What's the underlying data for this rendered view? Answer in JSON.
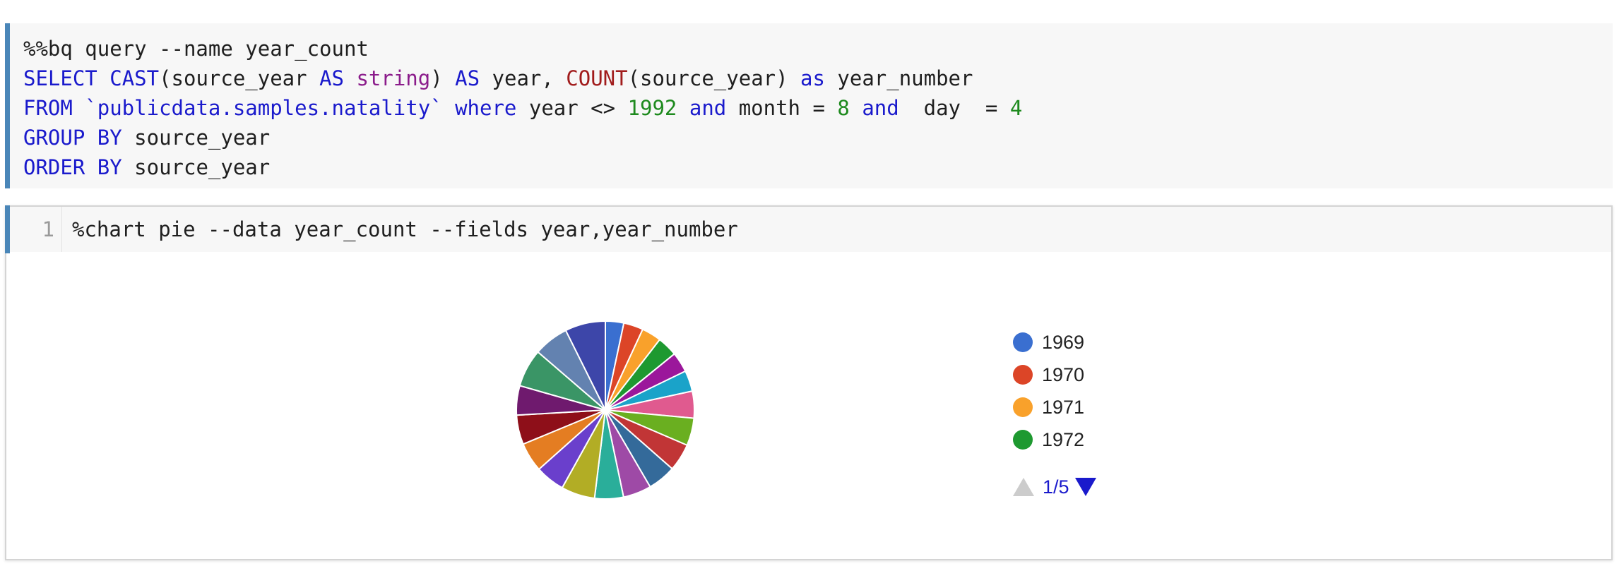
{
  "query_cell": {
    "lines": [
      [
        {
          "t": "%%bq query --name year_count",
          "c": ""
        }
      ],
      [
        {
          "t": "SELECT",
          "c": "kw"
        },
        {
          "t": " ",
          "c": ""
        },
        {
          "t": "CAST",
          "c": "kw"
        },
        {
          "t": "(source_year ",
          "c": ""
        },
        {
          "t": "AS",
          "c": "kw"
        },
        {
          "t": " ",
          "c": ""
        },
        {
          "t": "string",
          "c": "ty"
        },
        {
          "t": ") ",
          "c": ""
        },
        {
          "t": "AS",
          "c": "kw"
        },
        {
          "t": " year, ",
          "c": ""
        },
        {
          "t": "COUNT",
          "c": "fn"
        },
        {
          "t": "(source_year) ",
          "c": ""
        },
        {
          "t": "as",
          "c": "kw"
        },
        {
          "t": " year_number",
          "c": ""
        }
      ],
      [
        {
          "t": "FROM",
          "c": "kw"
        },
        {
          "t": " `publicdata.samples.natality` ",
          "c": "kw"
        },
        {
          "t": "where",
          "c": "kw"
        },
        {
          "t": " year <> ",
          "c": ""
        },
        {
          "t": "1992",
          "c": "nm"
        },
        {
          "t": " ",
          "c": ""
        },
        {
          "t": "and",
          "c": "kw"
        },
        {
          "t": " month = ",
          "c": ""
        },
        {
          "t": "8",
          "c": "nm"
        },
        {
          "t": " ",
          "c": ""
        },
        {
          "t": "and",
          "c": "kw"
        },
        {
          "t": "  day  = ",
          "c": ""
        },
        {
          "t": "4",
          "c": "nm"
        }
      ],
      [
        {
          "t": "GROUP BY",
          "c": "kw"
        },
        {
          "t": " source_year",
          "c": ""
        }
      ],
      [
        {
          "t": "ORDER BY",
          "c": "kw"
        },
        {
          "t": " source_year",
          "c": ""
        }
      ]
    ]
  },
  "chart_cell": {
    "line_number": "1",
    "command": "%chart pie --data year_count --fields year,year_number"
  },
  "chart_data": {
    "type": "pie",
    "slices": [
      {
        "label": "1969",
        "value": 3.0,
        "color": "#3a6fd0"
      },
      {
        "label": "1970",
        "value": 3.2,
        "color": "#dc4527"
      },
      {
        "label": "1971",
        "value": 3.2,
        "color": "#f9a12b"
      },
      {
        "label": "1972",
        "value": 3.3,
        "color": "#1e9930"
      },
      {
        "label": "",
        "value": 3.3,
        "color": "#9b179b"
      },
      {
        "label": "",
        "value": 3.4,
        "color": "#1aa3c9"
      },
      {
        "label": "",
        "value": 4.4,
        "color": "#e05a8f"
      },
      {
        "label": "",
        "value": 4.5,
        "color": "#6aaf20"
      },
      {
        "label": "",
        "value": 4.5,
        "color": "#c13536"
      },
      {
        "label": "",
        "value": 4.6,
        "color": "#346a9a"
      },
      {
        "label": "",
        "value": 4.6,
        "color": "#9e4aa6"
      },
      {
        "label": "",
        "value": 4.7,
        "color": "#2aae9a"
      },
      {
        "label": "",
        "value": 5.5,
        "color": "#b2ad25"
      },
      {
        "label": "",
        "value": 4.8,
        "color": "#6a3fcc"
      },
      {
        "label": "",
        "value": 4.8,
        "color": "#e47d22"
      },
      {
        "label": "",
        "value": 4.8,
        "color": "#8e0f19"
      },
      {
        "label": "",
        "value": 4.8,
        "color": "#6f1a6e"
      },
      {
        "label": "",
        "value": 6.2,
        "color": "#3a9566"
      },
      {
        "label": "",
        "value": 5.7,
        "color": "#6382b0"
      },
      {
        "label": "",
        "value": 6.6,
        "color": "#3d46a9"
      }
    ],
    "legend": {
      "placement": "right",
      "visible_items": [
        "1969",
        "1970",
        "1971",
        "1972"
      ],
      "page": "1/5"
    }
  }
}
